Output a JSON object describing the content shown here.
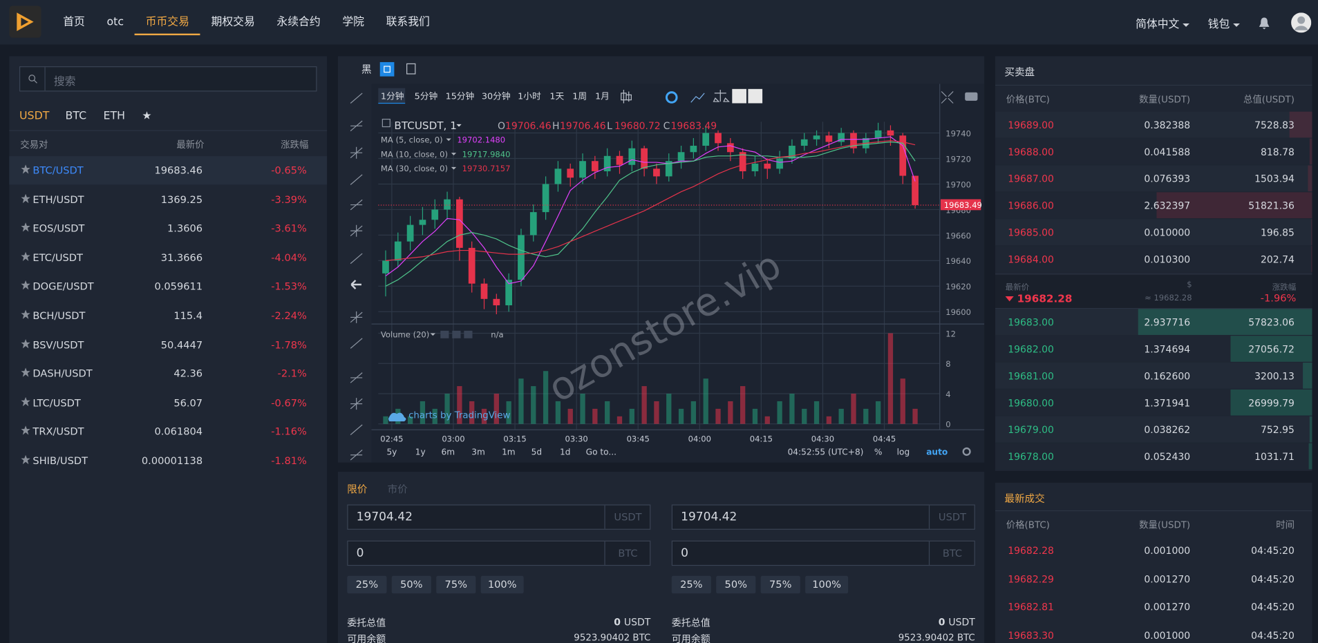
{
  "nav": {
    "items": [
      "首页",
      "otc",
      "币币交易",
      "期权交易",
      "永续合约",
      "学院",
      "联系我们"
    ],
    "active": 2,
    "language": "简体中文",
    "wallet": "钱包"
  },
  "market": {
    "search_placeholder": "搜索",
    "tabs": [
      "USDT",
      "BTC",
      "ETH",
      "★"
    ],
    "active_tab": 0,
    "headers": [
      "交易对",
      "最新价",
      "涨跌幅"
    ],
    "selected": 0,
    "rows": [
      [
        "BTC/USDT",
        "19683.46",
        "-0.65%"
      ],
      [
        "ETH/USDT",
        "1369.25",
        "-3.39%"
      ],
      [
        "EOS/USDT",
        "1.3606",
        "-3.61%"
      ],
      [
        "ETC/USDT",
        "31.3666",
        "-4.04%"
      ],
      [
        "DOGE/USDT",
        "0.059611",
        "-1.53%"
      ],
      [
        "BCH/USDT",
        "115.4",
        "-2.24%"
      ],
      [
        "BSV/USDT",
        "50.4447",
        "-1.78%"
      ],
      [
        "DASH/USDT",
        "42.36",
        "-2.1%"
      ],
      [
        "LTC/USDT",
        "56.07",
        "-0.67%"
      ],
      [
        "TRX/USDT",
        "0.061804",
        "-1.16%"
      ],
      [
        "SHIB/USDT",
        "0.00001138",
        "-1.81%"
      ]
    ]
  },
  "chart": {
    "type": "candlestick",
    "theme_label": "黑",
    "intervals": [
      "1分钟",
      "5分钟",
      "15分钟",
      "30分钟",
      "1小时",
      "1天",
      "1周",
      "1月"
    ],
    "active_interval": 0,
    "symbol": "BTCUSDT, 1",
    "ohlc_labels": [
      "O",
      "H",
      "L",
      "C"
    ],
    "open": [
      19630,
      19640,
      19655,
      19668,
      19672,
      19680,
      19688,
      19650,
      19622,
      19610,
      19605,
      19625,
      19660,
      19678,
      19700,
      19712,
      19705,
      19718,
      19710,
      19722,
      19715,
      19728,
      19712,
      19706,
      19718,
      19725,
      19730,
      19740,
      19732,
      19725,
      19710,
      19716,
      19712,
      19720,
      19730,
      19735,
      19738,
      19733,
      19740,
      19728,
      19736,
      19742,
      19738,
      19706.46
    ],
    "high": [
      19648,
      19662,
      19675,
      19682,
      19688,
      19694,
      19690,
      19655,
      19626,
      19614,
      19630,
      19665,
      19684,
      19706,
      19718,
      19716,
      19724,
      19722,
      19728,
      19726,
      19734,
      19730,
      19716,
      19724,
      19730,
      19736,
      19746,
      19742,
      19736,
      19728,
      19722,
      19720,
      19726,
      19735,
      19740,
      19742,
      19741,
      19744,
      19742,
      19740,
      19748,
      19746,
      19740,
      19706.46
    ],
    "low": [
      19612,
      19635,
      19648,
      19660,
      19665,
      19672,
      19640,
      19615,
      19602,
      19598,
      19600,
      19620,
      19655,
      19672,
      19694,
      19698,
      19700,
      19704,
      19706,
      19708,
      19710,
      19706,
      19700,
      19702,
      19712,
      19720,
      19726,
      19726,
      19718,
      19704,
      19706,
      19704,
      19708,
      19716,
      19726,
      19730,
      19728,
      19730,
      19724,
      19724,
      19732,
      19730,
      19700,
      19680.72
    ],
    "close": [
      19640,
      19655,
      19668,
      19672,
      19680,
      19688,
      19650,
      19622,
      19610,
      19605,
      19625,
      19660,
      19678,
      19700,
      19712,
      19705,
      19718,
      19710,
      19722,
      19715,
      19728,
      19712,
      19706,
      19718,
      19725,
      19730,
      19740,
      19732,
      19725,
      19710,
      19716,
      19712,
      19720,
      19730,
      19735,
      19738,
      19733,
      19740,
      19728,
      19736,
      19742,
      19738,
      19706.46,
      19683.49
    ],
    "up_color": "#26a17b",
    "down_color": "#e5334b",
    "ma": [
      {
        "name": "MA (5, close, 0)",
        "color": "#e040fb",
        "value_label": "19702.1480",
        "values": [
          19628,
          19635,
          19645,
          19655,
          19663,
          19673,
          19672,
          19662,
          19650,
          19635,
          19622,
          19624,
          19636,
          19655,
          19675,
          19695,
          19703,
          19709,
          19713,
          19714,
          19719,
          19717,
          19717,
          19716,
          19718,
          19718,
          19724,
          19729,
          19730,
          19727,
          19725,
          19719,
          19717,
          19718,
          19723,
          19727,
          19731,
          19735,
          19735,
          19735,
          19736,
          19737,
          19730,
          19702.148
        ]
      },
      {
        "name": "MA (10, close, 0)",
        "color": "#4fc38a",
        "value_label": "19717.9840",
        "values": [
          19620,
          19625,
          19632,
          19640,
          19647,
          19655,
          19660,
          19662,
          19660,
          19657,
          19652,
          19648,
          19645,
          19643,
          19645,
          19655,
          19665,
          19678,
          19690,
          19703,
          19709,
          19713,
          19715,
          19716,
          19717,
          19718,
          19721,
          19722,
          19722,
          19723,
          19722,
          19722,
          19721,
          19721,
          19721,
          19722,
          19725,
          19728,
          19730,
          19731,
          19732,
          19733,
          19732,
          19717.984
        ]
      },
      {
        "name": "MA (30, close, 0)",
        "color": "#e5334b",
        "value_label": "19730.7157",
        "values": [
          19640,
          19641,
          19642,
          19643,
          19645,
          19647,
          19648,
          19648,
          19647,
          19646,
          19645,
          19645,
          19646,
          19648,
          19651,
          19655,
          19659,
          19663,
          19667,
          19671,
          19675,
          19679,
          19684,
          19689,
          19694,
          19698,
          19703,
          19708,
          19712,
          19715,
          19717,
          19719,
          19721,
          19722,
          19724,
          19725,
          19727,
          19729,
          19731,
          19732,
          19733,
          19734,
          19733,
          19730.7157
        ]
      }
    ],
    "xlim": [
      -0.6,
      45
    ],
    "xticks": [
      {
        "value": 0.5,
        "label": "02:45"
      },
      {
        "value": 5.5,
        "label": "03:00"
      },
      {
        "value": 10.5,
        "label": "03:15"
      },
      {
        "value": 15.5,
        "label": "03:30"
      },
      {
        "value": 20.5,
        "label": "03:45"
      },
      {
        "value": 25.5,
        "label": "04:00"
      },
      {
        "value": 30.5,
        "label": "04:15"
      },
      {
        "value": 35.5,
        "label": "04:30"
      },
      {
        "value": 40.5,
        "label": "04:45"
      }
    ],
    "ylim": [
      19591,
      19760
    ],
    "yticks": [
      19600,
      19620,
      19640,
      19660,
      19680,
      19700,
      19720,
      19740
    ],
    "grid": true,
    "volume": {
      "title": "Volume (20)",
      "status": "n/a",
      "values": [
        1,
        2,
        1,
        3,
        2,
        4,
        5,
        3,
        2,
        4,
        3,
        6,
        5,
        7,
        3,
        2,
        4,
        2,
        3,
        1,
        2,
        5,
        3,
        4,
        2,
        3,
        6,
        2,
        3,
        5,
        2,
        1,
        3,
        4,
        2,
        3,
        1,
        2,
        4,
        2,
        3,
        12,
        6,
        2
      ],
      "ylim": [
        0,
        13
      ],
      "yticks": [
        0,
        4,
        8,
        12
      ]
    },
    "credit": "charts by TradingView",
    "ranges": [
      "5y",
      "1y",
      "6m",
      "3m",
      "1m",
      "5d",
      "1d",
      "Go to..."
    ],
    "clock": "04:52:55 (UTC+8)",
    "scale_options": [
      "%",
      "log",
      "auto"
    ],
    "active_scale": 2,
    "watermark": "ozonstore.vip"
  },
  "orderbook": {
    "title": "买卖盘",
    "headers": [
      "价格(BTC)",
      "数量(USDT)",
      "总值(USDT)"
    ],
    "asks": [
      [
        "19689.00",
        "0.382388",
        7528.83
      ],
      [
        "19688.00",
        "0.041588",
        818.78
      ],
      [
        "19687.00",
        "0.076393",
        1503.94
      ],
      [
        "19686.00",
        "2.632397",
        51821.36
      ],
      [
        "19685.00",
        "0.010000",
        196.85
      ],
      [
        "19684.00",
        "0.010300",
        202.74
      ]
    ],
    "mid": {
      "labels": [
        "最新价",
        "$",
        "涨跌幅"
      ],
      "price": "19682.28",
      "usd": "≈ 19682.28",
      "change": "-1.96%"
    },
    "bids": [
      [
        "19683.00",
        "2.937716",
        57823.06
      ],
      [
        "19682.00",
        "1.374694",
        27056.72
      ],
      [
        "19681.00",
        "0.162600",
        3200.13
      ],
      [
        "19680.00",
        "1.371941",
        26999.79
      ],
      [
        "19679.00",
        "0.038262",
        752.95
      ],
      [
        "19678.00",
        "0.052430",
        1031.71
      ]
    ]
  },
  "trades": {
    "title": "最新成交",
    "headers": [
      "价格(BTC)",
      "数量(USDT)",
      "时间"
    ],
    "rows": [
      [
        "19682.28",
        "0.001000",
        "04:45:20"
      ],
      [
        "19682.29",
        "0.001270",
        "04:45:20"
      ],
      [
        "19682.81",
        "0.001270",
        "04:45:20"
      ],
      [
        "19683.30",
        "0.001000",
        "04:45:20"
      ]
    ]
  },
  "form": {
    "tabs": [
      "限价",
      "市价"
    ],
    "active_tab": 0,
    "sides": [
      {
        "price": "19704.42",
        "price_unit": "USDT",
        "amount": "0",
        "amount_unit": "BTC",
        "percents": [
          "25%",
          "50%",
          "75%",
          "100%"
        ],
        "total_label": "委托总值",
        "total": "0",
        "total_unit": "USDT",
        "balance_label": "可用余额",
        "balance": "9523.90402 BTC"
      },
      {
        "price": "19704.42",
        "price_unit": "USDT",
        "amount": "0",
        "amount_unit": "BTC",
        "percents": [
          "25%",
          "50%",
          "75%",
          "100%"
        ],
        "total_label": "委托总值",
        "total": "0",
        "total_unit": "USDT",
        "balance_label": "可用余额",
        "balance": "9523.90402 BTC"
      }
    ]
  }
}
